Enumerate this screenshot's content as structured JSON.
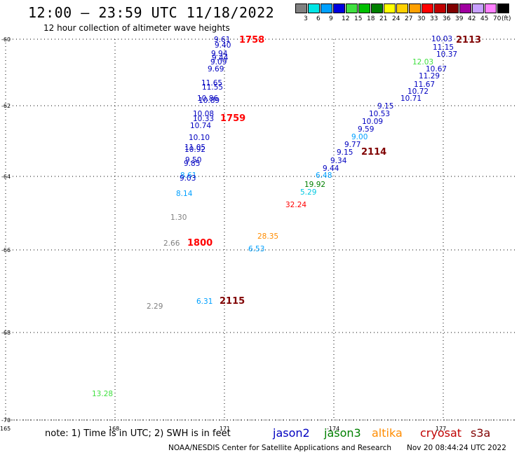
{
  "header": {
    "title": "12:00 – 23:59 UTC 11/18/2022",
    "subtitle": "12 hour collection of altimeter wave heights"
  },
  "legend": {
    "unit": "(ft)",
    "bins": [
      {
        "label": "3",
        "color": "#808080"
      },
      {
        "label": "6",
        "color": "#00e5e5"
      },
      {
        "label": "9",
        "color": "#00a0ff"
      },
      {
        "label": "12",
        "color": "#0000e0"
      },
      {
        "label": "15",
        "color": "#40e040"
      },
      {
        "label": "18",
        "color": "#00c000"
      },
      {
        "label": "21",
        "color": "#008000"
      },
      {
        "label": "24",
        "color": "#ffff00"
      },
      {
        "label": "27",
        "color": "#ffd000"
      },
      {
        "label": "30",
        "color": "#ffa000"
      },
      {
        "label": "33",
        "color": "#ff0000"
      },
      {
        "label": "36",
        "color": "#c00000"
      },
      {
        "label": "39",
        "color": "#800000"
      },
      {
        "label": "42",
        "color": "#a000a0"
      },
      {
        "label": "45",
        "color": "#c8a0ff"
      },
      {
        "label": "70",
        "color": "#ff80ff"
      },
      {
        "label": "",
        "color": "#000000"
      }
    ]
  },
  "axes": {
    "lat_ticks": [
      "-60",
      "-62",
      "-64",
      "-66",
      "-68",
      "-70"
    ],
    "lon_ticks": [
      "165",
      "168",
      "171",
      "-174",
      "177"
    ]
  },
  "colors": {
    "jason2": "#0000c0",
    "jason3": "#008000",
    "altika": "#ff8c00",
    "cryosat": "#c00000",
    "s3a": "#800000",
    "light_blue": "#00a0ff",
    "cyan": "#00c8e0",
    "gray": "#808080",
    "light_green": "#40e040",
    "red": "#ff0000"
  },
  "points": [
    {
      "v": "9.61",
      "c": "jason2"
    },
    {
      "v": "9.40",
      "c": "jason2"
    },
    {
      "v": "9.94",
      "c": "jason2"
    },
    {
      "v": "9.44",
      "c": "jason2"
    },
    {
      "v": "9.09",
      "c": "jason2"
    },
    {
      "v": "9.69",
      "c": "jason2"
    },
    {
      "v": "11.65",
      "c": "jason2"
    },
    {
      "v": "11.55",
      "c": "jason2"
    },
    {
      "v": "10.86",
      "c": "jason2"
    },
    {
      "v": "10.89",
      "c": "jason2"
    },
    {
      "v": "10.08",
      "c": "jason2"
    },
    {
      "v": "10.33",
      "c": "jason2"
    },
    {
      "v": "10.74",
      "c": "jason2"
    },
    {
      "v": "10.10",
      "c": "jason2"
    },
    {
      "v": "11.05",
      "c": "jason2"
    },
    {
      "v": "10.92",
      "c": "jason2"
    },
    {
      "v": "9.50",
      "c": "jason2"
    },
    {
      "v": "9.85",
      "c": "jason2"
    },
    {
      "v": "8.61",
      "c": "light_blue"
    },
    {
      "v": "9.03",
      "c": "jason2"
    },
    {
      "v": "8.14",
      "c": "light_blue"
    },
    {
      "v": "1.30",
      "c": "gray"
    },
    {
      "v": "2.66",
      "c": "gray"
    },
    {
      "v": "6.31",
      "c": "light_blue"
    },
    {
      "v": "2.29",
      "c": "gray"
    },
    {
      "v": "13.28",
      "c": "light_green"
    },
    {
      "v": "10.03",
      "c": "jason2"
    },
    {
      "v": "11.15",
      "c": "jason2"
    },
    {
      "v": "10.37",
      "c": "jason2"
    },
    {
      "v": "12.03",
      "c": "light_green"
    },
    {
      "v": "10.67",
      "c": "jason2"
    },
    {
      "v": "11.29",
      "c": "jason2"
    },
    {
      "v": "11.67",
      "c": "jason2"
    },
    {
      "v": "10.72",
      "c": "jason2"
    },
    {
      "v": "10.71",
      "c": "jason2"
    },
    {
      "v": "9.15",
      "c": "jason2"
    },
    {
      "v": "10.53",
      "c": "jason2"
    },
    {
      "v": "10.09",
      "c": "jason2"
    },
    {
      "v": "9.59",
      "c": "jason2"
    },
    {
      "v": "9.00",
      "c": "light_blue"
    },
    {
      "v": "9.77",
      "c": "jason2"
    },
    {
      "v": "9.15",
      "c": "jason2"
    },
    {
      "v": "9.34",
      "c": "jason2"
    },
    {
      "v": "9.44",
      "c": "jason2"
    },
    {
      "v": "6.48",
      "c": "light_blue"
    },
    {
      "v": "19.92",
      "c": "jason3"
    },
    {
      "v": "5.29",
      "c": "cyan"
    },
    {
      "v": "32.24",
      "c": "red"
    },
    {
      "v": "28.35",
      "c": "altika"
    },
    {
      "v": "6.53",
      "c": "light_blue"
    }
  ],
  "times": [
    {
      "v": "1758",
      "c": "red"
    },
    {
      "v": "1759",
      "c": "red"
    },
    {
      "v": "1800",
      "c": "red"
    },
    {
      "v": "2115",
      "c": "s3a"
    },
    {
      "v": "2113",
      "c": "s3a"
    },
    {
      "v": "2114",
      "c": "s3a"
    }
  ],
  "footer": {
    "note": "note: 1) Time is in UTC; 2) SWH is in feet",
    "satellites": [
      "jason2",
      "jason3",
      "altika",
      "cryosat",
      "s3a"
    ],
    "credit": "NOAA/NESDIS Center for Satellite Applications and Research",
    "timestamp": "Nov 20 08:44:24 UTC 2022"
  }
}
